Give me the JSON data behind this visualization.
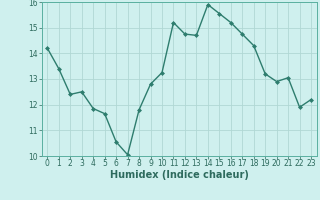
{
  "xlabel": "Humidex (Indice chaleur)",
  "x": [
    0,
    1,
    2,
    3,
    4,
    5,
    6,
    7,
    8,
    9,
    10,
    11,
    12,
    13,
    14,
    15,
    16,
    17,
    18,
    19,
    20,
    21,
    22,
    23
  ],
  "y": [
    14.2,
    13.4,
    12.4,
    12.5,
    11.85,
    11.65,
    10.55,
    10.05,
    11.8,
    12.8,
    13.25,
    15.2,
    14.75,
    14.7,
    15.9,
    15.55,
    15.2,
    14.75,
    14.3,
    13.2,
    12.9,
    13.05,
    11.9,
    12.2
  ],
  "line_color": "#2e7d6e",
  "marker": "D",
  "marker_size": 2.0,
  "background_color": "#cff0ee",
  "grid_color": "#b0d8d4",
  "ylim": [
    10,
    16
  ],
  "xlim": [
    -0.5,
    23.5
  ],
  "yticks": [
    10,
    11,
    12,
    13,
    14,
    15,
    16
  ],
  "xticks": [
    0,
    1,
    2,
    3,
    4,
    5,
    6,
    7,
    8,
    9,
    10,
    11,
    12,
    13,
    14,
    15,
    16,
    17,
    18,
    19,
    20,
    21,
    22,
    23
  ],
  "tick_fontsize": 5.5,
  "xlabel_fontsize": 7.0,
  "linewidth": 1.0,
  "tick_color": "#2e6b5e",
  "spine_color": "#5ab0a0"
}
